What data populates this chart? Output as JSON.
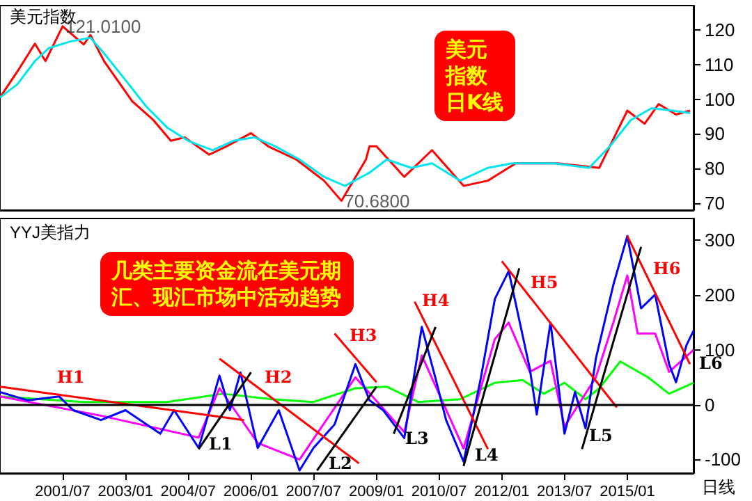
{
  "chart_data": [
    {
      "type": "line",
      "title": "美元指数",
      "xlim": [
        "2000-01",
        "2016-08"
      ],
      "ylim": [
        68,
        127
      ],
      "yticks": [
        70,
        80,
        90,
        100,
        110,
        120
      ],
      "tick_labels": "y",
      "grid": false,
      "series": [
        {
          "color": "#ff0000",
          "x": [
            "2000-01",
            "2000-06",
            "2000-11",
            "2001-02",
            "2001-07",
            "2002-01",
            "2002-03",
            "2002-07",
            "2003-03",
            "2003-09",
            "2004-02",
            "2004-06",
            "2005-01",
            "2005-06",
            "2006-01",
            "2006-06",
            "2007-02",
            "2007-10",
            "2008-03",
            "2008-10",
            "2008-11",
            "2009-01",
            "2009-09",
            "2010-05",
            "2011-02",
            "2011-09",
            "2012-05",
            "2013-05",
            "2014-05",
            "2015-01",
            "2015-06",
            "2015-10",
            "2016-03",
            "2016-07"
          ],
          "values": [
            100.5,
            108,
            116,
            111,
            121.01,
            115.8,
            118.5,
            110.8,
            99.4,
            94,
            88,
            89,
            84,
            86.4,
            90.2,
            86.4,
            82.6,
            76.5,
            70.68,
            82.6,
            86.4,
            86.4,
            77.6,
            85.3,
            75,
            76.5,
            81.5,
            81.5,
            80.2,
            96.7,
            92.9,
            98.6,
            95.6,
            96.7
          ]
        },
        {
          "color": "#00e5ee",
          "x": [
            "2000-01",
            "2000-06",
            "2000-11",
            "2001-03",
            "2001-09",
            "2002-03",
            "2002-07",
            "2003-01",
            "2003-07",
            "2004-01",
            "2004-07",
            "2005-02",
            "2005-08",
            "2006-02",
            "2006-08",
            "2007-03",
            "2007-10",
            "2008-04",
            "2008-11",
            "2009-04",
            "2009-11",
            "2010-05",
            "2011-01",
            "2011-09",
            "2012-04",
            "2013-04",
            "2014-02",
            "2014-08",
            "2015-02",
            "2015-08",
            "2016-02",
            "2016-07"
          ],
          "values": [
            100.5,
            104.3,
            111,
            114.7,
            116.6,
            117.7,
            113.1,
            105.5,
            97.9,
            91.8,
            88,
            85.3,
            88,
            89,
            86.4,
            82.6,
            77.6,
            75,
            78.8,
            82.6,
            80.2,
            81.5,
            76.5,
            80.2,
            81.5,
            81.5,
            80.2,
            86.4,
            94,
            97.4,
            96.7,
            96
          ]
        }
      ],
      "annotations": [
        {
          "text": "121.0100",
          "x": "2001-07",
          "y": 121.01
        },
        {
          "text": "70.6800",
          "x": "2008-03",
          "y": 70.68
        },
        "美元指数日K线"
      ]
    },
    {
      "type": "line",
      "title": "YYJ美指力",
      "xlabel": "日线",
      "xlim": [
        "2000-01",
        "2016-08"
      ],
      "xticks": [
        {
          "value": "2001-07",
          "label": "2001/07"
        },
        {
          "value": "2003-01",
          "label": "2003/01"
        },
        {
          "value": "2004-07",
          "label": "2004/07"
        },
        {
          "value": "2006-01",
          "label": "2006/01"
        },
        {
          "value": "2007-07",
          "label": "2007/07"
        },
        {
          "value": "2009-01",
          "label": "2009/01"
        },
        {
          "value": "2010-07",
          "label": "2010/07"
        },
        {
          "value": "2012-01",
          "label": "2012/01"
        },
        {
          "value": "2013-07",
          "label": "2013/07"
        },
        {
          "value": "2015-01",
          "label": "2015/01"
        }
      ],
      "ylim": [
        -125,
        340
      ],
      "yticks": [
        -100,
        0,
        100,
        200,
        300
      ],
      "grid": false,
      "ref_lines": [
        {
          "axis": "y",
          "value": 0,
          "color": "#000000"
        }
      ],
      "series": [
        {
          "color": "#00ff00",
          "x": [
            "2000-01",
            "2002-01",
            "2004-01",
            "2005-05",
            "2006-07",
            "2007-07",
            "2008-07",
            "2009-04",
            "2010-01",
            "2011-01",
            "2011-11",
            "2012-07",
            "2013-01",
            "2013-07",
            "2014-01",
            "2014-05",
            "2014-11",
            "2015-07",
            "2016-01",
            "2016-08"
          ],
          "values": [
            15,
            5,
            5,
            20,
            10,
            5,
            30,
            33,
            5,
            10,
            40,
            45,
            20,
            40,
            10,
            30,
            79,
            50,
            20,
            40
          ]
        },
        {
          "color": "#ff00ff",
          "x": [
            "2000-01",
            "2002-06",
            "2004-10",
            "2005-04",
            "2006-03",
            "2007-03",
            "2008-07",
            "2009-09",
            "2010-02",
            "2011-02",
            "2011-11",
            "2012-03",
            "2012-09",
            "2013-03",
            "2013-07",
            "2014-04",
            "2014-09",
            "2015-01",
            "2015-04",
            "2015-09",
            "2016-01",
            "2016-08"
          ],
          "values": [
            15,
            -20,
            -60,
            30,
            -70,
            -100,
            50,
            -50,
            90,
            -80,
            120,
            150,
            60,
            80,
            -40,
            50,
            150,
            236,
            130,
            130,
            60,
            100
          ]
        },
        {
          "color": "#0000ff",
          "x": [
            "2000-01",
            "2000-09",
            "2001-06",
            "2001-10",
            "2002-06",
            "2003-01",
            "2003-11",
            "2004-03",
            "2004-10",
            "2005-04",
            "2005-07",
            "2005-10",
            "2006-03",
            "2006-09",
            "2007-03",
            "2007-07",
            "2008-01",
            "2008-07",
            "2008-11",
            "2009-03",
            "2009-09",
            "2010-02",
            "2010-06",
            "2010-09",
            "2011-02",
            "2011-07",
            "2011-11",
            "2012-03",
            "2012-09",
            "2012-11",
            "2013-03",
            "2013-07",
            "2013-10",
            "2014-01",
            "2014-04",
            "2014-09",
            "2015-01",
            "2015-05",
            "2015-09",
            "2016-01",
            "2016-03",
            "2016-06",
            "2016-08"
          ],
          "values": [
            23,
            8,
            15,
            -10,
            -28,
            -10,
            -53,
            -10,
            -79,
            53,
            -10,
            59,
            -79,
            -10,
            -120,
            -79,
            -36,
            74,
            8,
            -10,
            -61,
            142,
            48,
            -28,
            -104,
            48,
            193,
            244,
            66,
            -18,
            150,
            -53,
            23,
            -43,
            84,
            219,
            308,
            176,
            201,
            74,
            41,
            109,
            135
          ]
        },
        {
          "color": "#ff0000",
          "x": [
            "2000-01",
            "2005-11"
          ],
          "values": [
            33,
            -28
          ]
        },
        {
          "color": "#ff0000",
          "x": [
            "2005-04",
            "2008-08"
          ],
          "values": [
            84,
            -107
          ]
        },
        {
          "color": "#ff0000",
          "x": [
            "2008-01",
            "2009-01"
          ],
          "values": [
            130,
            41
          ]
        },
        {
          "color": "#ff0000",
          "x": [
            "2009-12",
            "2011-09"
          ],
          "values": [
            188,
            -81
          ]
        },
        {
          "color": "#ff0000",
          "x": [
            "2012-01",
            "2014-10"
          ],
          "values": [
            262,
            -5
          ]
        },
        {
          "color": "#ff0000",
          "x": [
            "2015-01",
            "2016-07"
          ],
          "values": [
            308,
            74
          ]
        },
        {
          "color": "#000000",
          "x": [
            "2004-10",
            "2006-01"
          ],
          "values": [
            -81,
            59
          ]
        },
        {
          "color": "#000000",
          "x": [
            "2007-08",
            "2009-01"
          ],
          "values": [
            -120,
            33
          ]
        },
        {
          "color": "#000000",
          "x": [
            "2009-06",
            "2010-06"
          ],
          "values": [
            -53,
            142
          ]
        },
        {
          "color": "#000000",
          "x": [
            "2011-02",
            "2012-06"
          ],
          "values": [
            -112,
            249
          ]
        },
        {
          "color": "#000000",
          "x": [
            "2013-12",
            "2015-05"
          ],
          "values": [
            -81,
            288
          ]
        }
      ],
      "annotations": [
        "H1",
        "H2",
        "H3",
        "H4",
        "H5",
        "H6",
        "L1",
        "L2",
        "L3",
        "L4",
        "L5",
        "L6",
        "几类主要资金流在美元期汇、现汇市场中活动趋势"
      ]
    }
  ]
}
